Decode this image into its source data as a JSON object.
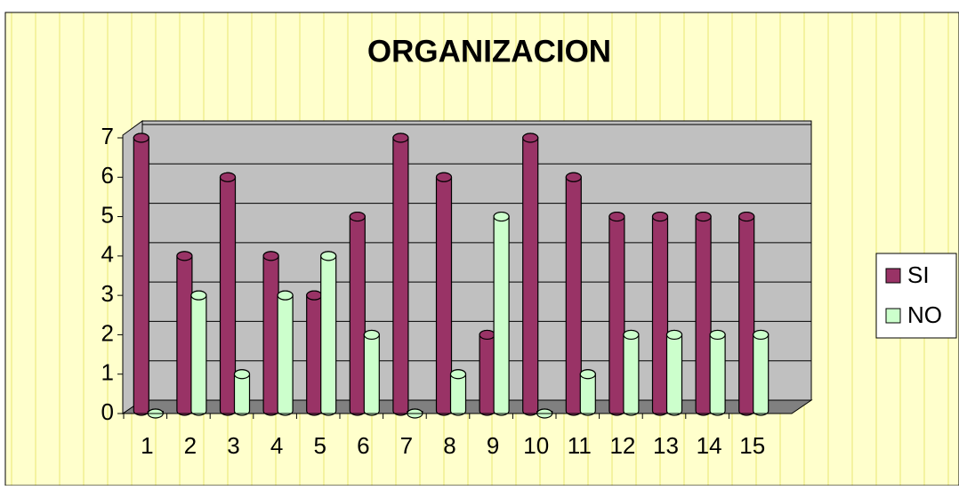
{
  "chart_data": {
    "type": "bar3d",
    "title": "ORGANIZACION",
    "categories": [
      "1",
      "2",
      "3",
      "4",
      "5",
      "6",
      "7",
      "8",
      "9",
      "10",
      "11",
      "12",
      "13",
      "14",
      "15"
    ],
    "series": [
      {
        "name": "SI",
        "color": "#993366",
        "values": [
          7,
          4,
          6,
          4,
          3,
          5,
          7,
          6,
          2,
          7,
          6,
          5,
          5,
          5,
          5
        ]
      },
      {
        "name": "NO",
        "color": "#ccffcc",
        "values": [
          0,
          3,
          1,
          3,
          4,
          2,
          0,
          1,
          5,
          0,
          1,
          2,
          2,
          2,
          2
        ]
      }
    ],
    "ylim": [
      0,
      7
    ],
    "yticks": [
      0,
      1,
      2,
      3,
      4,
      5,
      6,
      7
    ],
    "grid": true,
    "legend": "right"
  }
}
